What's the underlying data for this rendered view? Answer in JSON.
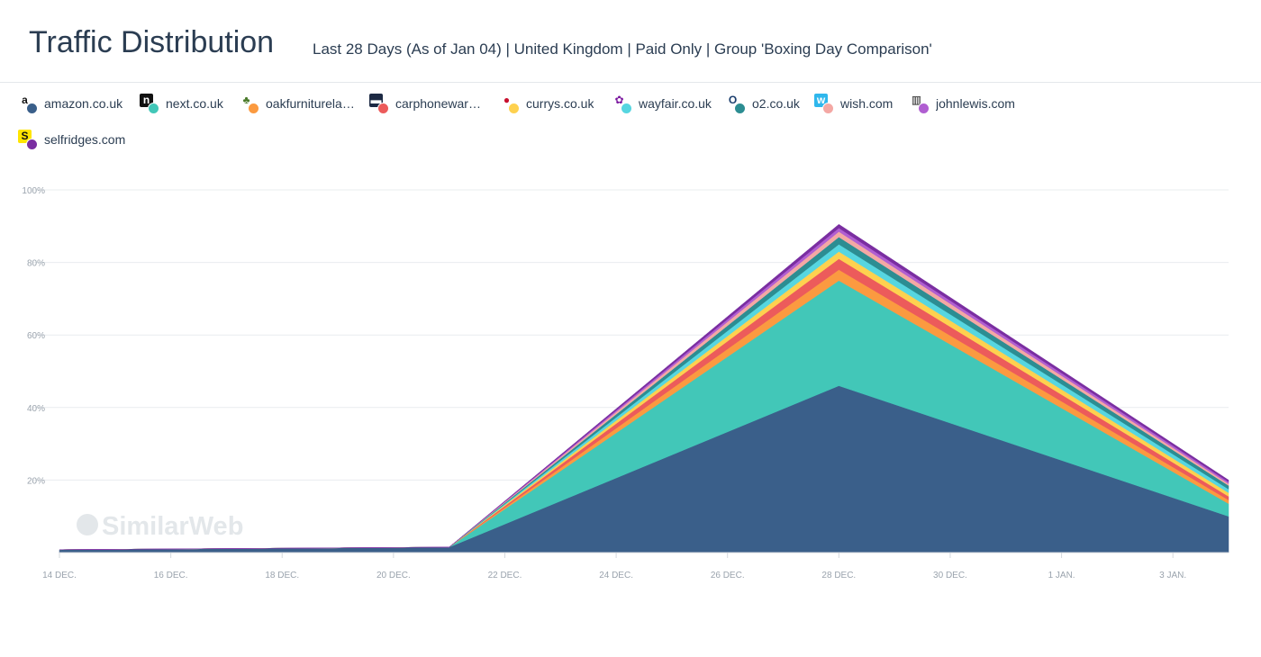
{
  "header": {
    "title": "Traffic Distribution",
    "subtitle": "Last 28 Days (As of Jan 04) | United Kingdom | Paid Only | Group 'Boxing Day Comparison'"
  },
  "legend": [
    {
      "label": "amazon.co.uk",
      "color": "#3a5f8a",
      "icon": "amazon-logo-icon"
    },
    {
      "label": "next.co.uk",
      "color": "#42c7b8",
      "icon": "next-logo-icon"
    },
    {
      "label": "oakfurniturela…",
      "color": "#fb9a40",
      "icon": "oakfurnitureland-logo-icon"
    },
    {
      "label": "carphoneware…",
      "color": "#ec5b5b",
      "icon": "carphonewarehouse-logo-icon"
    },
    {
      "label": "currys.co.uk",
      "color": "#fed14f",
      "icon": "currys-logo-icon"
    },
    {
      "label": "wayfair.co.uk",
      "color": "#56d6e0",
      "icon": "wayfair-logo-icon"
    },
    {
      "label": "o2.co.uk",
      "color": "#2c8d92",
      "icon": "o2-logo-icon"
    },
    {
      "label": "wish.com",
      "color": "#f4a8a4",
      "icon": "wish-logo-icon"
    },
    {
      "label": "johnlewis.com",
      "color": "#b05ed1",
      "icon": "johnlewis-logo-icon"
    },
    {
      "label": "selfridges.com",
      "color": "#7a2ea1",
      "icon": "selfridges-logo-icon"
    }
  ],
  "watermark": "SimilarWeb",
  "chart_data": {
    "type": "area",
    "stacked": true,
    "title": "Traffic Distribution",
    "xlabel": "",
    "ylabel": "",
    "ylim": [
      0,
      100
    ],
    "y_ticks": [
      "100%",
      "80%",
      "60%",
      "40%",
      "20%"
    ],
    "y_tick_values": [
      100,
      80,
      60,
      40,
      20
    ],
    "x_ticks": [
      "14 DEC.",
      "16 DEC.",
      "18 DEC.",
      "20 DEC.",
      "22 DEC.",
      "24 DEC.",
      "26 DEC.",
      "28 DEC.",
      "30 DEC.",
      "1 JAN.",
      "3 JAN."
    ],
    "x": [
      "14 DEC.",
      "21 DEC.",
      "28 DEC.",
      "4 JAN."
    ],
    "grid": true,
    "legend_position": "top",
    "series": [
      {
        "name": "amazon.co.uk",
        "color": "#3a5f8a",
        "values": [
          0.8,
          1.5,
          46,
          10
        ]
      },
      {
        "name": "next.co.uk",
        "color": "#42c7b8",
        "values": [
          0,
          0,
          29,
          3.5
        ]
      },
      {
        "name": "oakfurniturela…",
        "color": "#fb9a40",
        "values": [
          0,
          0,
          3,
          1
        ]
      },
      {
        "name": "carphoneware…",
        "color": "#ec5b5b",
        "values": [
          0,
          0,
          3,
          1
        ]
      },
      {
        "name": "currys.co.uk",
        "color": "#fed14f",
        "values": [
          0,
          0,
          2,
          1
        ]
      },
      {
        "name": "wayfair.co.uk",
        "color": "#56d6e0",
        "values": [
          0,
          0,
          2,
          1
        ]
      },
      {
        "name": "o2.co.uk",
        "color": "#2c8d92",
        "values": [
          0,
          0,
          2,
          1
        ]
      },
      {
        "name": "wish.com",
        "color": "#f4a8a4",
        "values": [
          0,
          0,
          1.5,
          0.5
        ]
      },
      {
        "name": "johnlewis.com",
        "color": "#b05ed1",
        "values": [
          0,
          0,
          1,
          0.5
        ]
      },
      {
        "name": "selfridges.com",
        "color": "#7a2ea1",
        "values": [
          0,
          0,
          1,
          0.5
        ]
      }
    ]
  }
}
